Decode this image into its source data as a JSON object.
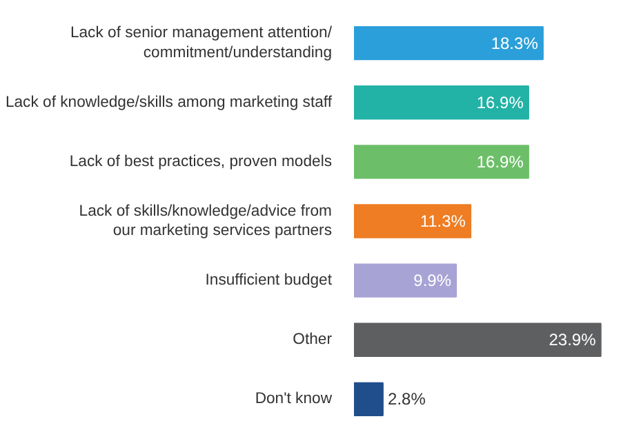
{
  "chart_data": {
    "type": "bar",
    "orientation": "horizontal",
    "categories": [
      "Lack of senior management attention/\ncommitment/understanding",
      "Lack of knowledge/skills among marketing staff",
      "Lack of best practices, proven models",
      "Lack of skills/knowledge/advice from\nour marketing services partners",
      "Insufficient budget",
      "Other",
      "Don't know"
    ],
    "values": [
      18.3,
      16.9,
      16.9,
      11.3,
      9.9,
      23.9,
      2.8
    ],
    "colors": [
      "#2b9fd9",
      "#22b2a6",
      "#6cbf68",
      "#ee7d23",
      "#a8a3d5",
      "#5e5f61",
      "#1f4e8a"
    ],
    "value_labels": [
      "18.3%",
      "16.9%",
      "16.9%",
      "11.3%",
      "9.9%",
      "23.9%",
      "2.8%"
    ]
  }
}
